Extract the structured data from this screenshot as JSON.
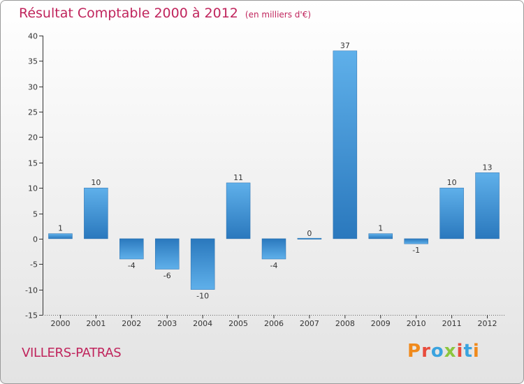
{
  "chart_data": {
    "type": "bar",
    "title": "Résultat Comptable 2000 à 2012",
    "subtitle": "(en milliers d'€)",
    "categories": [
      "2000",
      "2001",
      "2002",
      "2003",
      "2004",
      "2005",
      "2006",
      "2007",
      "2008",
      "2009",
      "2010",
      "2011",
      "2012"
    ],
    "values": [
      1,
      10,
      -4,
      -6,
      -10,
      11,
      -4,
      0,
      37,
      1,
      -1,
      10,
      13
    ],
    "ylim": [
      -15,
      40
    ],
    "yticks": [
      40,
      35,
      30,
      25,
      20,
      15,
      10,
      5,
      0,
      -5,
      -10,
      -15
    ],
    "xlabel": "",
    "ylabel": "",
    "grid": false,
    "bar_color": "#3a8fd2"
  },
  "footer": {
    "city": "VILLERS-PATRAS",
    "logo_letters": [
      "P",
      "r",
      "o",
      "x",
      "i",
      "t",
      "i"
    ],
    "logo_colors": [
      "#f08a1c",
      "#e84c3d",
      "#3aa3df",
      "#8cc63e",
      "#e84c3d",
      "#3aa3df",
      "#f08a1c"
    ]
  }
}
